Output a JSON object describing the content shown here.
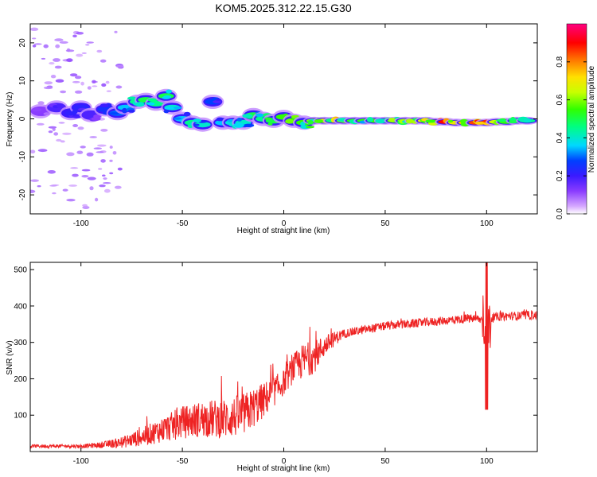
{
  "title": "KOM5.2025.312.22.15.G30",
  "chart_data": [
    {
      "type": "heatmap",
      "name": "spectrogram",
      "xlabel": "Height of straight line (km)",
      "ylabel": "Frequency (Hz)",
      "xlim": [
        -125,
        125
      ],
      "ylim": [
        -25,
        25
      ],
      "xticks": [
        -100,
        -50,
        0,
        50,
        100
      ],
      "yticks": [
        -20,
        -10,
        0,
        10,
        20
      ],
      "colorbar": {
        "label": "Normalized spectral amplitude",
        "range": [
          0,
          1
        ],
        "ticks": [
          0.0,
          0.2,
          0.4,
          0.6,
          0.8
        ]
      },
      "blobs": [
        {
          "x": -120,
          "y": 2,
          "amp": 0.12
        },
        {
          "x": -112,
          "y": 3,
          "amp": 0.18
        },
        {
          "x": -105,
          "y": 1.5,
          "amp": 0.2
        },
        {
          "x": -100,
          "y": 3,
          "amp": 0.22
        },
        {
          "x": -95,
          "y": 1,
          "amp": 0.18
        },
        {
          "x": -88,
          "y": 2.5,
          "amp": 0.25
        },
        {
          "x": -82,
          "y": 1.5,
          "amp": 0.3
        },
        {
          "x": -78,
          "y": 3,
          "amp": 0.35
        },
        {
          "x": -72,
          "y": 4.5,
          "amp": 0.45
        },
        {
          "x": -68,
          "y": 5,
          "amp": 0.5
        },
        {
          "x": -63,
          "y": 4,
          "amp": 0.45
        },
        {
          "x": -58,
          "y": 6,
          "amp": 0.5
        },
        {
          "x": -55,
          "y": 3,
          "amp": 0.4
        },
        {
          "x": -50,
          "y": 0,
          "amp": 0.35
        },
        {
          "x": -45,
          "y": -1,
          "amp": 0.45
        },
        {
          "x": -40,
          "y": -1.5,
          "amp": 0.4
        },
        {
          "x": -35,
          "y": 4.5,
          "amp": 0.28
        },
        {
          "x": -30,
          "y": -1,
          "amp": 0.35
        },
        {
          "x": -25,
          "y": -1,
          "amp": 0.38
        },
        {
          "x": -20,
          "y": -1,
          "amp": 0.4
        },
        {
          "x": -15,
          "y": 1,
          "amp": 0.5
        },
        {
          "x": -10,
          "y": 0,
          "amp": 0.45
        },
        {
          "x": -5,
          "y": -0.5,
          "amp": 0.5
        },
        {
          "x": 0,
          "y": 0.5,
          "amp": 0.55
        },
        {
          "x": 5,
          "y": -0.5,
          "amp": 0.55
        },
        {
          "x": 10,
          "y": -1,
          "amp": 0.55
        },
        {
          "x": 15,
          "y": -0.5,
          "amp": 0.6
        },
        {
          "x": 20,
          "y": -0.5,
          "amp": 0.7
        },
        {
          "x": 25,
          "y": -0.5,
          "amp": 0.75
        },
        {
          "x": 30,
          "y": -0.5,
          "amp": 0.6
        },
        {
          "x": 35,
          "y": -0.5,
          "amp": 0.55
        },
        {
          "x": 40,
          "y": -0.5,
          "amp": 0.55
        },
        {
          "x": 45,
          "y": -0.5,
          "amp": 0.55
        },
        {
          "x": 50,
          "y": -0.5,
          "amp": 0.55
        },
        {
          "x": 55,
          "y": -0.5,
          "amp": 0.58
        },
        {
          "x": 60,
          "y": -0.5,
          "amp": 0.6
        },
        {
          "x": 65,
          "y": -0.5,
          "amp": 0.6
        },
        {
          "x": 70,
          "y": -0.5,
          "amp": 0.7
        },
        {
          "x": 75,
          "y": -0.8,
          "amp": 0.85
        },
        {
          "x": 80,
          "y": -0.8,
          "amp": 0.9
        },
        {
          "x": 85,
          "y": -1,
          "amp": 0.7
        },
        {
          "x": 90,
          "y": -1,
          "amp": 0.75
        },
        {
          "x": 95,
          "y": -1,
          "amp": 0.85
        },
        {
          "x": 100,
          "y": -1,
          "amp": 0.9
        },
        {
          "x": 105,
          "y": -0.8,
          "amp": 0.65
        },
        {
          "x": 110,
          "y": -0.8,
          "amp": 0.55
        },
        {
          "x": 115,
          "y": -0.5,
          "amp": 0.5
        },
        {
          "x": 120,
          "y": -0.5,
          "amp": 0.45
        }
      ]
    },
    {
      "type": "line",
      "name": "snr",
      "xlabel": "Height of straight line (km)",
      "ylabel": "SNR (v/v)",
      "xlim": [
        -125,
        125
      ],
      "ylim": [
        0,
        520
      ],
      "xticks": [
        -100,
        -50,
        0,
        50,
        100
      ],
      "yticks": [
        100,
        200,
        300,
        400,
        500
      ],
      "color": "#ee2222",
      "trend": {
        "x": [
          -125,
          -100,
          -90,
          -80,
          -70,
          -60,
          -50,
          -40,
          -30,
          -20,
          -10,
          0,
          5,
          10,
          15,
          20,
          25,
          30,
          40,
          50,
          60,
          70,
          80,
          90,
          95,
          100,
          105,
          110,
          125
        ],
        "y": [
          15,
          15,
          18,
          25,
          40,
          60,
          80,
          90,
          90,
          100,
          140,
          190,
          230,
          250,
          260,
          290,
          310,
          325,
          335,
          345,
          350,
          355,
          360,
          365,
          365,
          360,
          370,
          372,
          375
        ],
        "noise": [
          5,
          5,
          8,
          15,
          25,
          35,
          45,
          50,
          55,
          60,
          50,
          35,
          40,
          50,
          45,
          30,
          20,
          12,
          12,
          12,
          12,
          12,
          12,
          12,
          12,
          12,
          12,
          12,
          12
        ]
      },
      "spike": {
        "x": 100,
        "y_max": 520,
        "y_min": 115
      }
    }
  ]
}
